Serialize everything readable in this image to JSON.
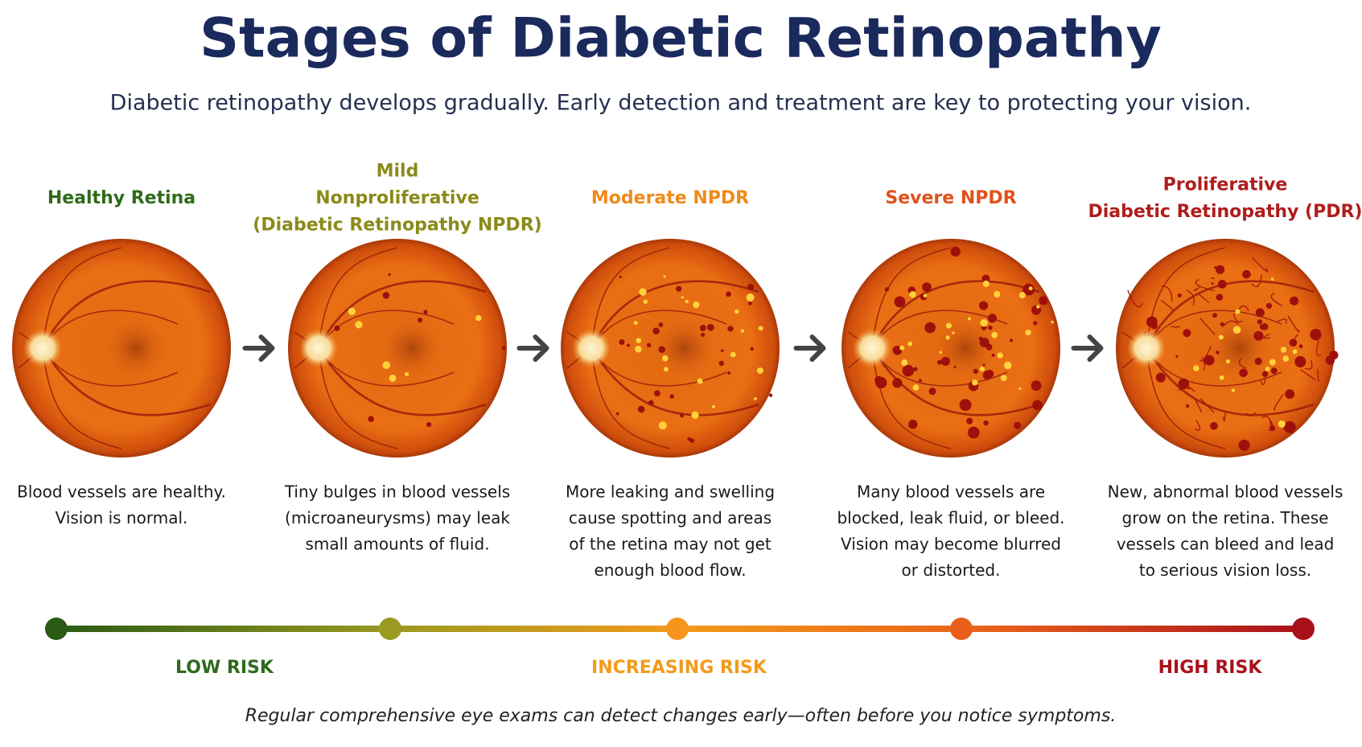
{
  "title": "Stages of Diabetic Retinopathy",
  "subtitle": "Diabetic retinopathy develops gradually. Early detection and treatment are key to protecting your vision.",
  "stages": [
    {
      "title": [
        "Healthy Retina"
      ],
      "description": [
        "Blood vessels are healthy.",
        "Vision is normal."
      ]
    },
    {
      "title": [
        "Mild",
        "Nonproliferative",
        "(Diabetic Retinopathy NPDR)"
      ],
      "description": [
        "Tiny bulges in blood vessels",
        "(microaneurysms) may leak",
        "small amounts of fluid."
      ]
    },
    {
      "title": [
        "Moderate NPDR"
      ],
      "description": [
        "More leaking and swelling",
        "cause spotting and areas",
        "of the retina may not get",
        "enough blood flow."
      ]
    },
    {
      "title": [
        "Severe NPDR"
      ],
      "description": [
        "Many blood vessels are",
        "blocked, leak fluid, or bleed.",
        "Vision may become blurred",
        "or distorted."
      ]
    },
    {
      "title": [
        "Proliferative",
        "Diabetic Retinopathy (PDR)"
      ],
      "description": [
        "New, abnormal blood vessels",
        "grow on the retina. These",
        "vessels can bleed and lead",
        "to serious vision loss."
      ]
    }
  ],
  "risk_labels": [
    "LOW RISK",
    "INCREASING RISK",
    "HIGH RISK"
  ],
  "footer": "Regular comprehensive eye exams can detect changes early—often before you notice symptoms."
}
